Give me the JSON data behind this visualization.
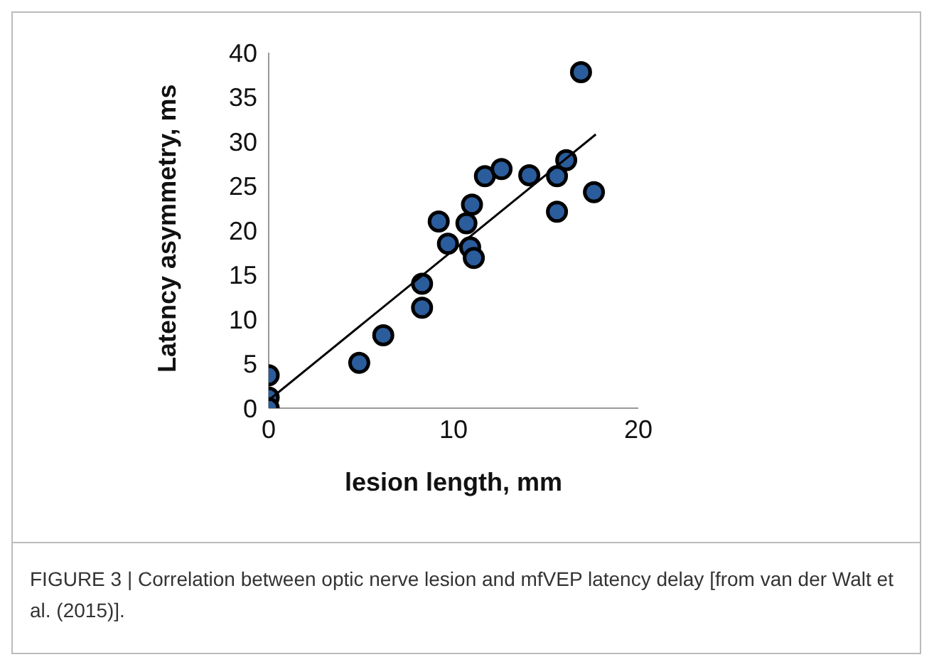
{
  "chart_data": {
    "type": "scatter",
    "xlabel": "lesion length, mm",
    "ylabel": "Latency asymmetry, ms",
    "annotations": [
      "FIGURE 3 | Correlation between optic nerve lesion and mfVEP latency delay [from van der Walt et al. (2015)]."
    ],
    "series": [
      {
        "type": "scatter",
        "color": "#2b5c9c",
        "marker": "circle",
        "x": [
          0,
          0,
          0,
          4.9,
          6.2,
          8.3,
          8.3,
          9.2,
          9.7,
          10.7,
          11.0,
          10.9,
          11.1,
          11.7,
          12.6,
          14.1,
          15.6,
          16.1,
          15.6,
          16.9,
          17.6
        ],
        "values": [
          3.7,
          1.2,
          0,
          5.1,
          8.2,
          11.3,
          14.0,
          21.0,
          18.5,
          20.8,
          22.9,
          18.1,
          16.9,
          26.1,
          26.9,
          26.2,
          26.1,
          27.9,
          22.1,
          37.8,
          24.3
        ]
      },
      {
        "type": "line",
        "color": "#000000",
        "marker": "none",
        "x": [
          0,
          17.7
        ],
        "values": [
          0.9,
          30.8
        ]
      }
    ],
    "xlim": [
      0,
      20
    ],
    "xticks": [
      0,
      10,
      20
    ],
    "ylim": [
      0,
      40
    ],
    "yticks": [
      0,
      5,
      10,
      15,
      20,
      25,
      30,
      35,
      40
    ],
    "grid": false,
    "legend": false
  }
}
